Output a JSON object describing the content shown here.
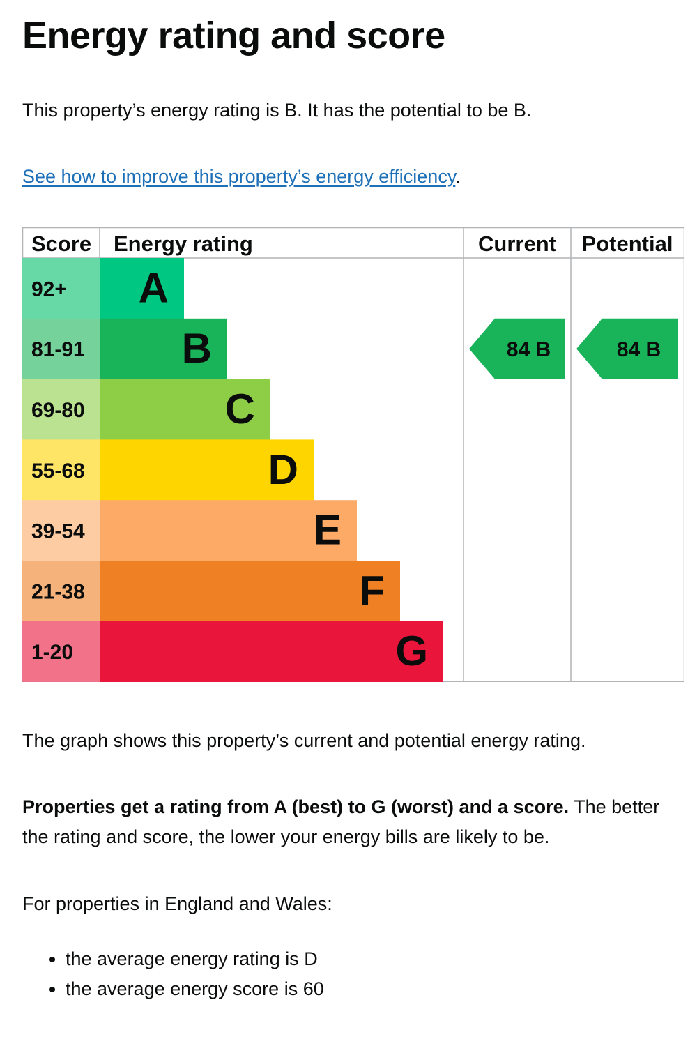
{
  "page": {
    "title": "Energy rating and score",
    "intro": "This property’s energy rating is B. It has the potential to be B.",
    "improve_link": "See how to improve this property’s energy efficiency",
    "improve_link_suffix": ".",
    "graph_note": "The graph shows this property’s current and potential energy rating.",
    "rating_bold": "Properties get a rating from A (best) to G (worst) and a score.",
    "rating_rest": " The better the rating and score, the lower your energy bills are likely to be.",
    "region_intro": "For properties in England and Wales:",
    "bullets": [
      "the average energy rating is D",
      "the average energy score is 60"
    ]
  },
  "chart_data": {
    "type": "bar",
    "headers": {
      "score": "Score",
      "rating": "Energy rating",
      "current": "Current",
      "potential": "Potential"
    },
    "bands": [
      {
        "letter": "A",
        "range": "92+",
        "color": "#00c781",
        "score_bg": "#66d9a7"
      },
      {
        "letter": "B",
        "range": "81-91",
        "color": "#19b459",
        "score_bg": "#75d29b"
      },
      {
        "letter": "C",
        "range": "69-80",
        "color": "#8dce46",
        "score_bg": "#bbe290"
      },
      {
        "letter": "D",
        "range": "55-68",
        "color": "#ffd500",
        "score_bg": "#ffe566"
      },
      {
        "letter": "E",
        "range": "39-54",
        "color": "#fcaa65",
        "score_bg": "#fdcca3"
      },
      {
        "letter": "F",
        "range": "21-38",
        "color": "#ef8023",
        "score_bg": "#f5b37b"
      },
      {
        "letter": "G",
        "range": "1-20",
        "color": "#e9153b",
        "score_bg": "#f27389"
      }
    ],
    "current": {
      "score": 84,
      "band": "B",
      "label": "84  B",
      "color": "#19b459"
    },
    "potential": {
      "score": 84,
      "band": "B",
      "label": "84  B",
      "color": "#19b459"
    }
  }
}
